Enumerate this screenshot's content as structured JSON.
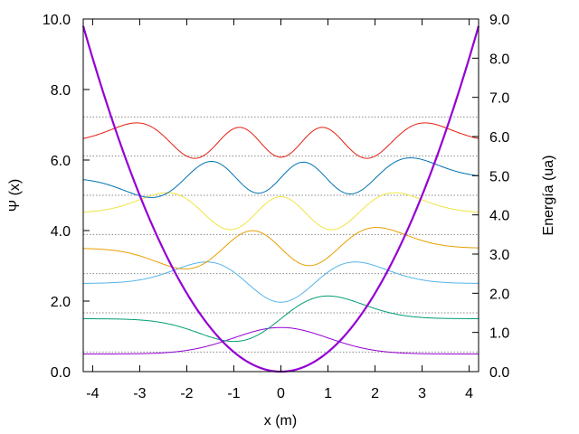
{
  "chart_data": {
    "type": "line",
    "title": "",
    "xlabel": "x (m)",
    "ylabel_left": "Ψ (x)",
    "ylabel_right": "Energía (ua)",
    "xlim": [
      -4.2,
      4.2
    ],
    "ylim_left": [
      0,
      10
    ],
    "ylim_right": [
      0,
      9
    ],
    "x_ticks": [
      -4,
      -3,
      -2,
      -1,
      0,
      1,
      2,
      3,
      4
    ],
    "x_tick_labels": [
      "-4",
      "-3",
      "-2",
      "-1",
      "0",
      "1",
      "2",
      "3",
      "4"
    ],
    "y_left_ticks": [
      0,
      2,
      4,
      6,
      8,
      10
    ],
    "y_left_tick_labels": [
      "0.0",
      "2.0",
      "4.0",
      "6.0",
      "8.0",
      "10.0"
    ],
    "y_right_ticks": [
      0,
      1,
      2,
      3,
      4,
      5,
      6,
      7,
      8,
      9
    ],
    "y_right_tick_labels": [
      "0.0",
      "1.0",
      "2.0",
      "3.0",
      "4.0",
      "5.0",
      "6.0",
      "7.0",
      "8.0",
      "9.0"
    ],
    "grid": false,
    "legend": "none",
    "energy_levels": [
      0.5,
      1.5,
      2.5,
      3.5,
      4.5,
      5.5,
      6.5
    ],
    "potential": {
      "description": "V(x) = x^2/2 plotted on the right axis",
      "color": "#9400d3",
      "coefficient": 0.5
    },
    "series": [
      {
        "n": 0,
        "offset": 0.5,
        "color": "#9400d3"
      },
      {
        "n": 1,
        "offset": 1.5,
        "color": "#009e73"
      },
      {
        "n": 2,
        "offset": 2.5,
        "color": "#56b4e9"
      },
      {
        "n": 3,
        "offset": 3.5,
        "color": "#e69f00"
      },
      {
        "n": 4,
        "offset": 4.5,
        "color": "#f0e442"
      },
      {
        "n": 5,
        "offset": 5.5,
        "color": "#0072b2"
      },
      {
        "n": 6,
        "offset": 6.5,
        "color": "#e51e10"
      }
    ]
  }
}
